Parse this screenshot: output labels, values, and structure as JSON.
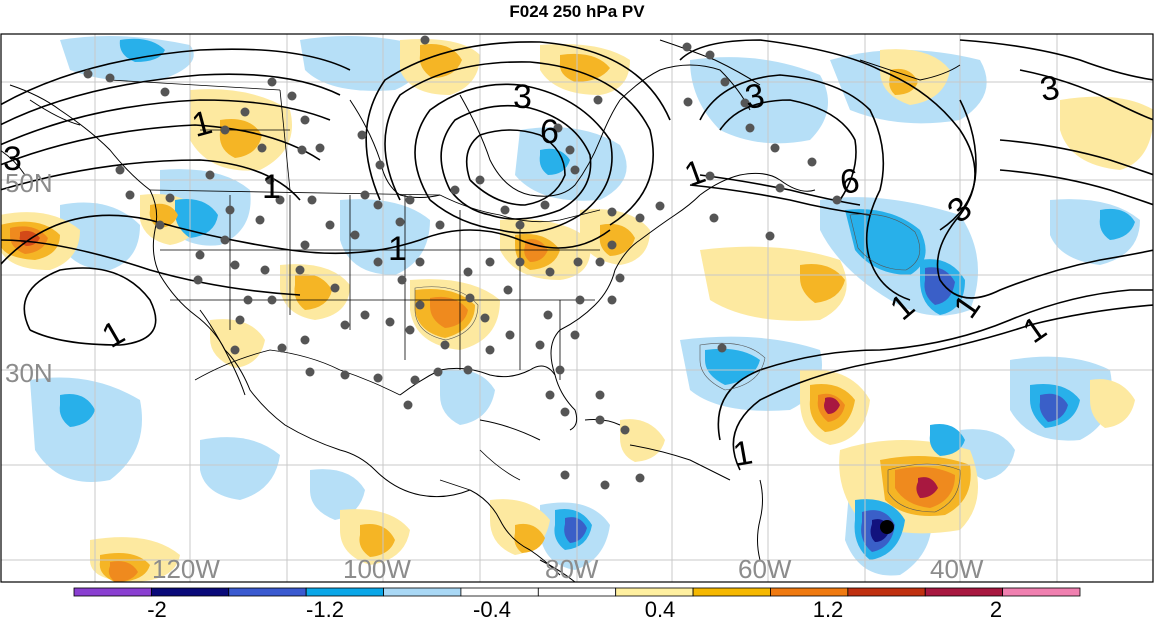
{
  "title": "F024 250 hPa PV",
  "lat_labels": [
    "50N",
    "30N"
  ],
  "lon_labels": [
    "120W",
    "100W",
    "80W",
    "60W",
    "40W"
  ],
  "contour_labels": [
    "1",
    "1",
    "1",
    "1",
    "1",
    "1",
    "1",
    "1",
    "1",
    "3",
    "3",
    "3",
    "3",
    "3",
    "6",
    "6"
  ],
  "colorbar": {
    "colors": [
      "#8a3fd1",
      "#0a0a7a",
      "#3a5ad0",
      "#0aa7e8",
      "#a9d8f5",
      "#ffffff",
      "#ffffff",
      "#fff0a0",
      "#f5b800",
      "#f07a10",
      "#c03010",
      "#a81840",
      "#f080b0"
    ],
    "labels": [
      "-2",
      "-1.2",
      "-0.4",
      "0.4",
      "1.2",
      "2"
    ]
  },
  "colors": {
    "pos_light": "#fde9a0",
    "pos_mid": "#f5b525",
    "pos_strong": "#ef8a1e",
    "pos_max": "#c43a18",
    "neg_light": "#b6dff7",
    "neg_mid": "#28b0ea",
    "neg_strong": "#3a5fc8",
    "neg_max": "#12127e",
    "station": "#555555"
  }
}
